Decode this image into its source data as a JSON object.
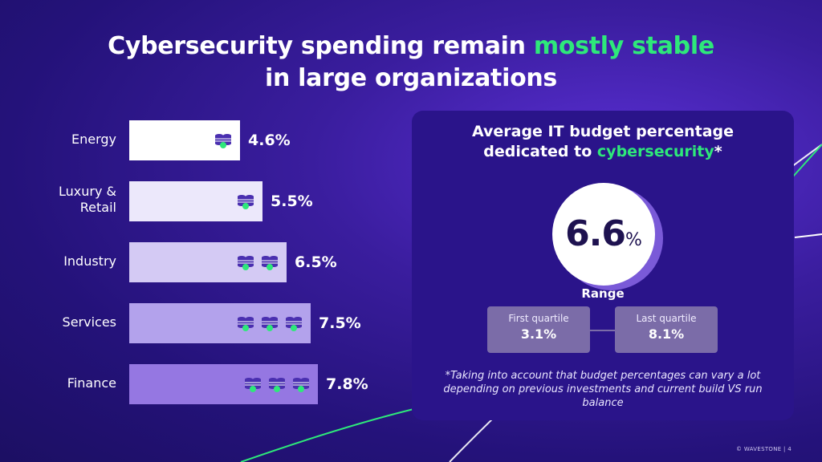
{
  "title": {
    "line1_prefix": "Cybersecurity spending remain",
    "line1_accent": "mostly stable",
    "line2": "in large organizations"
  },
  "chart_data": {
    "type": "bar",
    "orientation": "horizontal",
    "categories": [
      "Energy",
      "Luxury & Retail",
      "Industry",
      "Services",
      "Finance"
    ],
    "values": [
      4.6,
      5.5,
      6.5,
      7.5,
      7.8
    ],
    "value_labels": [
      "4.6%",
      "5.5%",
      "6.5%",
      "7.5%",
      "7.8%"
    ],
    "icon_counts": [
      1,
      1,
      2,
      3,
      3
    ],
    "bar_colors": [
      "#ffffff",
      "#ece8fb",
      "#d4caf4",
      "#b3a2ec",
      "#9577e2"
    ],
    "unit": "%"
  },
  "panel": {
    "title_line1": "Average IT budget percentage",
    "title_line2_prefix": "dedicated to",
    "title_line2_accent": "cybersecurity",
    "title_line2_suffix": "*",
    "average_value": "6.6",
    "average_unit": "%",
    "range_label": "Range",
    "first_quartile_label": "First quartile",
    "first_quartile_value": "3.1%",
    "last_quartile_label": "Last quartile",
    "last_quartile_value": "8.1%",
    "footnote": "*Taking into account that budget percentages can vary a lot depending on previous investments and current build VS run balance"
  },
  "footer": {
    "brand": "© WAVESTONE",
    "page": "4"
  },
  "colors": {
    "accent_green": "#2ee87a",
    "background": "#2a168a",
    "panel": "#2a148a"
  },
  "icons": {
    "bar_icon": "coin-stack-icon"
  }
}
